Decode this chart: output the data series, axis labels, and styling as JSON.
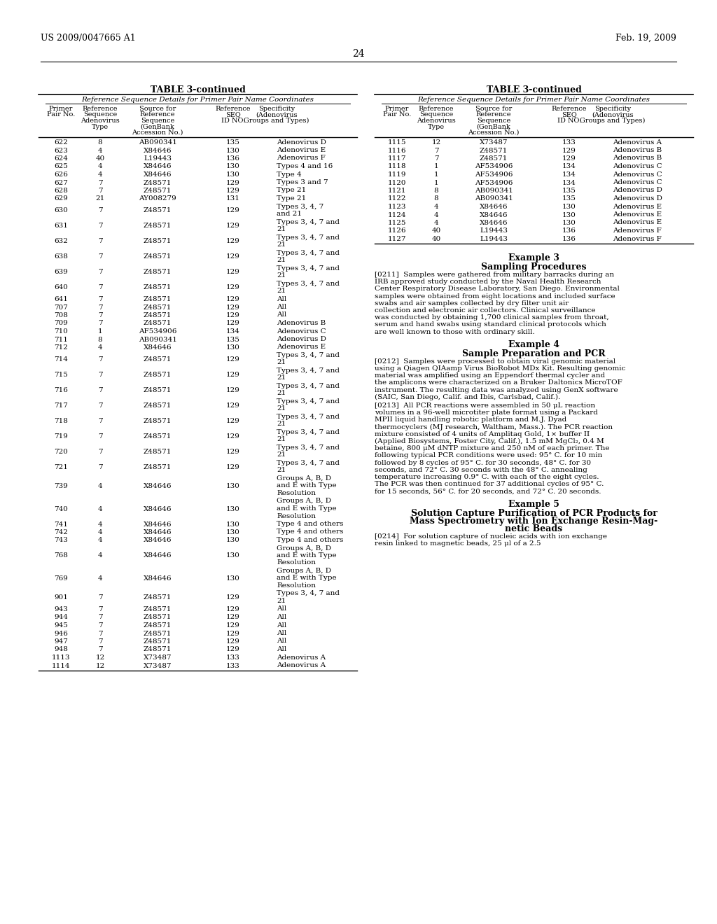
{
  "page_number": "24",
  "patent_number": "US 2009/0047665 A1",
  "patent_date": "Feb. 19, 2009",
  "bg_color": "#ffffff",
  "left_table": {
    "title": "TABLE 3-continued",
    "subtitle": "Reference Sequence Details for Primer Pair Name Coordinates",
    "rows": [
      [
        "622",
        "8",
        "AB090341",
        "135",
        "Adenovirus D"
      ],
      [
        "623",
        "4",
        "X84646",
        "130",
        "Adenovirus E"
      ],
      [
        "624",
        "40",
        "L19443",
        "136",
        "Adenovirus F"
      ],
      [
        "625",
        "4",
        "X84646",
        "130",
        "Types 4 and 16"
      ],
      [
        "626",
        "4",
        "X84646",
        "130",
        "Type 4"
      ],
      [
        "627",
        "7",
        "Z48571",
        "129",
        "Types 3 and 7"
      ],
      [
        "628",
        "7",
        "Z48571",
        "129",
        "Type 21"
      ],
      [
        "629",
        "21",
        "AY008279",
        "131",
        "Type 21"
      ],
      [
        "630",
        "7",
        "Z48571",
        "129",
        "Types 3, 4, 7\nand 21"
      ],
      [
        "631",
        "7",
        "Z48571",
        "129",
        "Types 3, 4, 7 and\n21"
      ],
      [
        "632",
        "7",
        "Z48571",
        "129",
        "Types 3, 4, 7 and\n21"
      ],
      [
        "638",
        "7",
        "Z48571",
        "129",
        "Types 3, 4, 7 and\n21"
      ],
      [
        "639",
        "7",
        "Z48571",
        "129",
        "Types 3, 4, 7 and\n21"
      ],
      [
        "640",
        "7",
        "Z48571",
        "129",
        "Types 3, 4, 7 and\n21"
      ],
      [
        "641",
        "7",
        "Z48571",
        "129",
        "All"
      ],
      [
        "707",
        "7",
        "Z48571",
        "129",
        "All"
      ],
      [
        "708",
        "7",
        "Z48571",
        "129",
        "All"
      ],
      [
        "709",
        "7",
        "Z48571",
        "129",
        "Adenovirus B"
      ],
      [
        "710",
        "1",
        "AF534906",
        "134",
        "Adenovirus C"
      ],
      [
        "711",
        "8",
        "AB090341",
        "135",
        "Adenovirus D"
      ],
      [
        "712",
        "4",
        "X84646",
        "130",
        "Adenovirus E"
      ],
      [
        "714",
        "7",
        "Z48571",
        "129",
        "Types 3, 4, 7 and\n21"
      ],
      [
        "715",
        "7",
        "Z48571",
        "129",
        "Types 3, 4, 7 and\n21"
      ],
      [
        "716",
        "7",
        "Z48571",
        "129",
        "Types 3, 4, 7 and\n21"
      ],
      [
        "717",
        "7",
        "Z48571",
        "129",
        "Types 3, 4, 7 and\n21"
      ],
      [
        "718",
        "7",
        "Z48571",
        "129",
        "Types 3, 4, 7 and\n21"
      ],
      [
        "719",
        "7",
        "Z48571",
        "129",
        "Types 3, 4, 7 and\n21"
      ],
      [
        "720",
        "7",
        "Z48571",
        "129",
        "Types 3, 4, 7 and\n21"
      ],
      [
        "721",
        "7",
        "Z48571",
        "129",
        "Types 3, 4, 7 and\n21"
      ],
      [
        "739",
        "4",
        "X84646",
        "130",
        "Groups A, B, D\nand E with Type\nResolution"
      ],
      [
        "740",
        "4",
        "X84646",
        "130",
        "Groups A, B, D\nand E with Type\nResolution"
      ],
      [
        "741",
        "4",
        "X84646",
        "130",
        "Type 4 and others"
      ],
      [
        "742",
        "4",
        "X84646",
        "130",
        "Type 4 and others"
      ],
      [
        "743",
        "4",
        "X84646",
        "130",
        "Type 4 and others"
      ],
      [
        "768",
        "4",
        "X84646",
        "130",
        "Groups A, B, D\nand E with Type\nResolution"
      ],
      [
        "769",
        "4",
        "X84646",
        "130",
        "Groups A, B, D\nand E with Type\nResolution"
      ],
      [
        "901",
        "7",
        "Z48571",
        "129",
        "Types 3, 4, 7 and\n21"
      ],
      [
        "943",
        "7",
        "Z48571",
        "129",
        "All"
      ],
      [
        "944",
        "7",
        "Z48571",
        "129",
        "All"
      ],
      [
        "945",
        "7",
        "Z48571",
        "129",
        "All"
      ],
      [
        "946",
        "7",
        "Z48571",
        "129",
        "All"
      ],
      [
        "947",
        "7",
        "Z48571",
        "129",
        "All"
      ],
      [
        "948",
        "7",
        "Z48571",
        "129",
        "All"
      ],
      [
        "1113",
        "12",
        "X73487",
        "133",
        "Adenovirus A"
      ],
      [
        "1114",
        "12",
        "X73487",
        "133",
        "Adenovirus A"
      ]
    ]
  },
  "right_table": {
    "title": "TABLE 3-continued",
    "subtitle": "Reference Sequence Details for Primer Pair Name Coordinates",
    "rows": [
      [
        "1115",
        "12",
        "X73487",
        "133",
        "Adenovirus A"
      ],
      [
        "1116",
        "7",
        "Z48571",
        "129",
        "Adenovirus B"
      ],
      [
        "1117",
        "7",
        "Z48571",
        "129",
        "Adenovirus B"
      ],
      [
        "1118",
        "1",
        "AF534906",
        "134",
        "Adenovirus C"
      ],
      [
        "1119",
        "1",
        "AF534906",
        "134",
        "Adenovirus C"
      ],
      [
        "1120",
        "1",
        "AF534906",
        "134",
        "Adenovirus C"
      ],
      [
        "1121",
        "8",
        "AB090341",
        "135",
        "Adenovirus D"
      ],
      [
        "1122",
        "8",
        "AB090341",
        "135",
        "Adenovirus D"
      ],
      [
        "1123",
        "4",
        "X84646",
        "130",
        "Adenovirus E"
      ],
      [
        "1124",
        "4",
        "X84646",
        "130",
        "Adenovirus E"
      ],
      [
        "1125",
        "4",
        "X84646",
        "130",
        "Adenovirus E"
      ],
      [
        "1126",
        "40",
        "L19443",
        "136",
        "Adenovirus F"
      ],
      [
        "1127",
        "40",
        "L19443",
        "136",
        "Adenovirus F"
      ]
    ]
  },
  "example3_title": "Example 3",
  "example3_subtitle": "Sampling Procedures",
  "example3_text": "[0211]  Samples were gathered from military barracks during an IRB approved study conducted by the Naval Health Research Center Respiratory Disease Laboratory, San Diego. Environmental samples were obtained from eight locations and included surface swabs and air samples collected by dry filter unit air collection and electronic air collectors. Clinical surveillance was conducted by obtaining 1,700 clinical samples from throat, serum and hand swabs using standard clinical protocols which are well known to those with ordinary skill.",
  "example4_title": "Example 4",
  "example4_subtitle": "Sample Preparation and PCR",
  "example4_para1": "[0212]  Samples were processed to obtain viral genomic material using a Qiagen QIAamp Virus BioRobot MDx Kit. Resulting genomic material was amplified using an Eppendorf thermal cycler and the amplicons were characterized on a Bruker Daltonics MicroTOF instrument. The resulting data was analyzed using GenX software (SAIC, San Diego, Calif. and Ibis, Carlsbad, Calif.).",
  "example4_para2": "[0213]  All PCR reactions were assembled in 50 μL reaction volumes in a 96-well microtiter plate format using a Packard MPII liquid handling robotic platform and M.J. Dyad thermocyclers (MJ research, Waltham, Mass.). The PCR reaction mixture consisted of 4 units of Amplitaq Gold, 1× buffer II (Applied Biosystems, Foster City, Calif.), 1.5 mM MgCl₂, 0.4 M betaine, 800 μM dNTP mixture and 250 nM of each primer. The following typical PCR conditions were used: 95° C. for 10 min followed by 8 cycles of 95° C. for 30 seconds, 48° C. for 30 seconds, and 72° C. 30 seconds with the 48° C. annealing temperature increasing 0.9° C. with each of the eight cycles. The PCR was then continued for 37 additional cycles of 95° C. for 15 seconds, 56° C. for 20 seconds, and 72° C. 20 seconds.",
  "example5_title": "Example 5",
  "example5_subtitle1": "Solution Capture Purification of PCR Products for",
  "example5_subtitle2": "Mass Spectrometry with Ion Exchange Resin-Mag-",
  "example5_subtitle3": "netic Beads",
  "example5_text": "[0214]  For solution capture of nucleic acids with ion exchange resin linked to magnetic beads, 25 μl of a 2.5"
}
